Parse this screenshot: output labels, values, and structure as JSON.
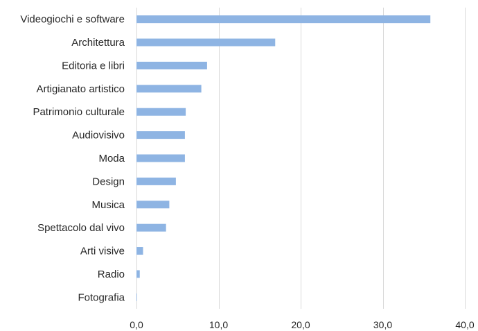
{
  "chart_data": {
    "type": "bar",
    "orientation": "horizontal",
    "categories": [
      "Videogiochi e software",
      "Architettura",
      "Editoria e libri",
      "Artigianato artistico",
      "Patrimonio culturale",
      "Audiovisivo",
      "Moda",
      "Design",
      "Musica",
      "Spettacolo dal vivo",
      "Arti visive",
      "Radio",
      "Fotografia"
    ],
    "values": [
      35.8,
      16.9,
      8.6,
      7.9,
      6.0,
      5.9,
      5.9,
      4.8,
      4.0,
      3.6,
      0.8,
      0.4,
      0.05
    ],
    "xlim": [
      0,
      40
    ],
    "xticks": [
      0,
      10,
      20,
      30,
      40
    ],
    "xtick_labels": [
      "0,0",
      "10,0",
      "20,0",
      "30,0",
      "40,0"
    ],
    "grid": "vertical",
    "legend": "none",
    "bar_color": "#8eb4e3",
    "title": "",
    "xlabel": "",
    "ylabel": ""
  }
}
